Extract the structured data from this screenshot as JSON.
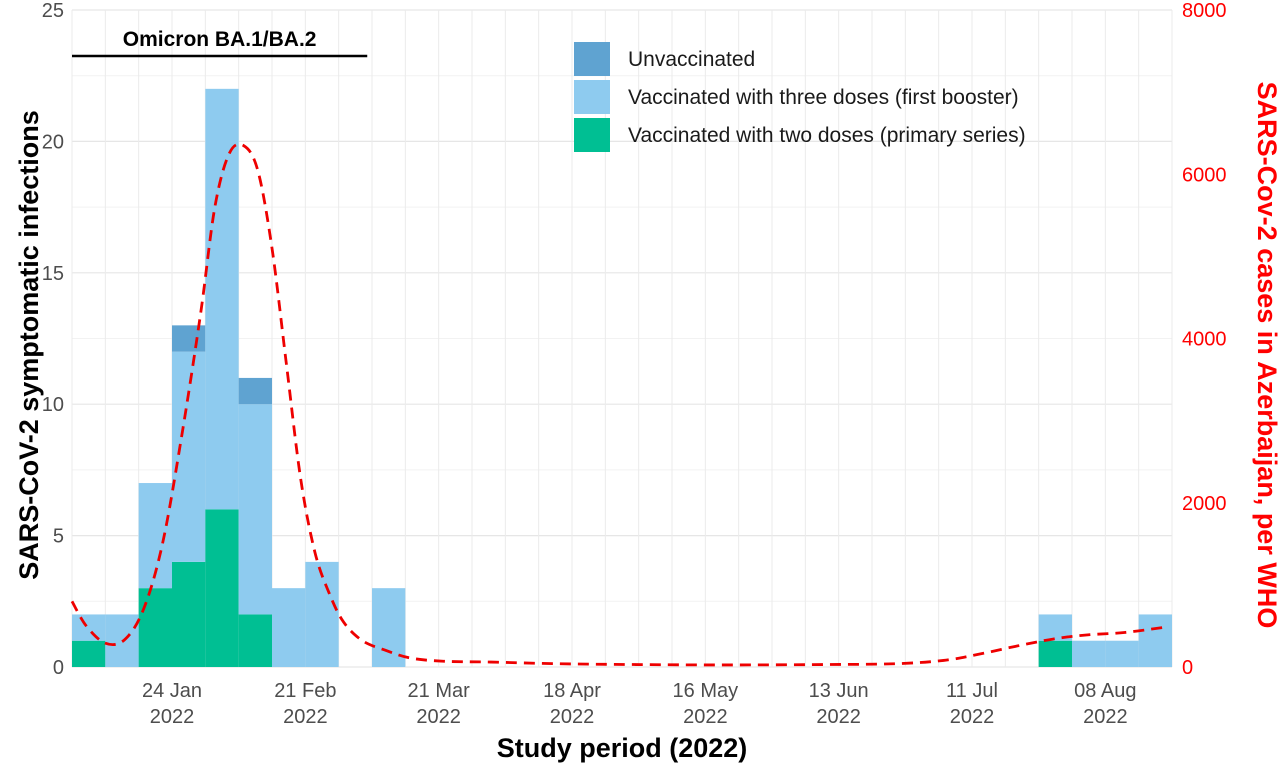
{
  "chart_data": {
    "type": "bar",
    "stacked": true,
    "xlabel": "Study period (2022)",
    "ylabel": "SARS-CoV-2 symptomatic infections",
    "ylabel_right": "SARS-Cov-2 cases in Azerbaijan, per WHO",
    "ylim": [
      0,
      25
    ],
    "ylim_right": [
      0,
      8000
    ],
    "y_ticks": [
      0,
      5,
      10,
      15,
      20,
      25
    ],
    "y_ticks_right": [
      0,
      2000,
      4000,
      6000,
      8000
    ],
    "x_range": [
      "2022-01-03",
      "2022-08-22"
    ],
    "x_ticks": [
      {
        "date": "2022-01-24",
        "label": "24 Jan",
        "year": "2022"
      },
      {
        "date": "2022-02-21",
        "label": "21 Feb",
        "year": "2022"
      },
      {
        "date": "2022-03-21",
        "label": "21 Mar",
        "year": "2022"
      },
      {
        "date": "2022-04-18",
        "label": "18 Apr",
        "year": "2022"
      },
      {
        "date": "2022-05-16",
        "label": "16 May",
        "year": "2022"
      },
      {
        "date": "2022-06-13",
        "label": "13 Jun",
        "year": "2022"
      },
      {
        "date": "2022-07-11",
        "label": "11 Jul",
        "year": "2022"
      },
      {
        "date": "2022-08-08",
        "label": "08 Aug",
        "year": "2022"
      }
    ],
    "bin_days": 7,
    "bins": [
      {
        "start": "2022-01-03",
        "two_doses": 1,
        "three_doses": 1,
        "unvaccinated": 0
      },
      {
        "start": "2022-01-10",
        "two_doses": 0,
        "three_doses": 2,
        "unvaccinated": 0
      },
      {
        "start": "2022-01-17",
        "two_doses": 3,
        "three_doses": 4,
        "unvaccinated": 0
      },
      {
        "start": "2022-01-24",
        "two_doses": 4,
        "three_doses": 8,
        "unvaccinated": 1
      },
      {
        "start": "2022-01-31",
        "two_doses": 6,
        "three_doses": 16,
        "unvaccinated": 0
      },
      {
        "start": "2022-02-07",
        "two_doses": 2,
        "three_doses": 8,
        "unvaccinated": 1
      },
      {
        "start": "2022-02-14",
        "two_doses": 0,
        "three_doses": 3,
        "unvaccinated": 0
      },
      {
        "start": "2022-02-21",
        "two_doses": 0,
        "three_doses": 4,
        "unvaccinated": 0
      },
      {
        "start": "2022-03-07",
        "two_doses": 0,
        "three_doses": 3,
        "unvaccinated": 0
      },
      {
        "start": "2022-07-25",
        "two_doses": 1,
        "three_doses": 1,
        "unvaccinated": 0
      },
      {
        "start": "2022-08-01",
        "two_doses": 0,
        "three_doses": 1,
        "unvaccinated": 0
      },
      {
        "start": "2022-08-08",
        "two_doses": 0,
        "three_doses": 1,
        "unvaccinated": 0
      },
      {
        "start": "2022-08-15",
        "two_doses": 0,
        "three_doses": 2,
        "unvaccinated": 0
      }
    ],
    "series": [
      {
        "key": "unvaccinated",
        "name": "Unvaccinated",
        "color": "#5fa3d1"
      },
      {
        "key": "three_doses",
        "name": "Vaccinated with three doses (first booster)",
        "color": "#8ecbef"
      },
      {
        "key": "two_doses",
        "name": "Vaccinated with two doses (primary series)",
        "color": "#00bf93"
      }
    ],
    "who_cases": {
      "name": "SARS-Cov-2 cases in Azerbaijan, per WHO",
      "color": "#ee0000",
      "style": "dashed",
      "points": [
        [
          "2022-01-03",
          800
        ],
        [
          "2022-01-06",
          500
        ],
        [
          "2022-01-10",
          290
        ],
        [
          "2022-01-14",
          330
        ],
        [
          "2022-01-18",
          700
        ],
        [
          "2022-01-22",
          1500
        ],
        [
          "2022-01-26",
          2800
        ],
        [
          "2022-01-30",
          4300
        ],
        [
          "2022-02-02",
          5600
        ],
        [
          "2022-02-05",
          6250
        ],
        [
          "2022-02-08",
          6350
        ],
        [
          "2022-02-11",
          6050
        ],
        [
          "2022-02-14",
          5100
        ],
        [
          "2022-02-17",
          3700
        ],
        [
          "2022-02-20",
          2300
        ],
        [
          "2022-02-23",
          1400
        ],
        [
          "2022-02-26",
          900
        ],
        [
          "2022-03-01",
          550
        ],
        [
          "2022-03-05",
          320
        ],
        [
          "2022-03-10",
          200
        ],
        [
          "2022-03-15",
          110
        ],
        [
          "2022-03-22",
          70
        ],
        [
          "2022-04-01",
          60
        ],
        [
          "2022-04-15",
          40
        ],
        [
          "2022-05-01",
          30
        ],
        [
          "2022-05-20",
          25
        ],
        [
          "2022-06-10",
          30
        ],
        [
          "2022-06-25",
          40
        ],
        [
          "2022-07-05",
          80
        ],
        [
          "2022-07-12",
          150
        ],
        [
          "2022-07-20",
          250
        ],
        [
          "2022-07-28",
          340
        ],
        [
          "2022-08-04",
          390
        ],
        [
          "2022-08-12",
          420
        ],
        [
          "2022-08-20",
          480
        ]
      ]
    },
    "annotation": {
      "label": "Omicron BA.1/BA.2",
      "start": "2022-01-03",
      "end": "2022-03-06"
    },
    "legend_position": "top-right",
    "grid": true
  }
}
